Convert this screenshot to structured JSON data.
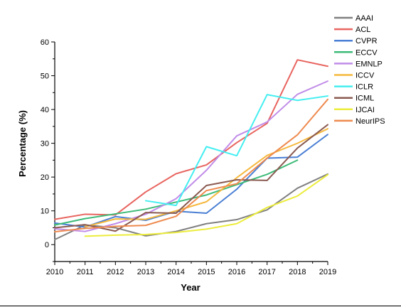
{
  "chart_data": {
    "type": "line",
    "title": "",
    "xlabel": "Year",
    "ylabel": "Percentage (%)",
    "x": [
      2010,
      2011,
      2012,
      2013,
      2014,
      2015,
      2016,
      2017,
      2018,
      2019
    ],
    "xlim": [
      2010,
      2019
    ],
    "ylim": [
      -5,
      60
    ],
    "yticks": [
      0,
      10,
      20,
      30,
      40,
      50,
      60
    ],
    "grid": false,
    "legend_position": "top-right",
    "series": [
      {
        "name": "AAAI",
        "color": "#808080",
        "values": [
          1.5,
          5.8,
          5.0,
          2.6,
          3.9,
          6.2,
          7.4,
          10.3,
          16.7,
          20.9
        ]
      },
      {
        "name": "ACL",
        "color": "#e8645f",
        "values": [
          7.5,
          9.0,
          8.8,
          15.6,
          21.0,
          23.6,
          30.2,
          35.9,
          54.7,
          52.8
        ]
      },
      {
        "name": "CVPR",
        "color": "#4a7fd4",
        "values": [
          6.4,
          5.2,
          8.3,
          7.2,
          9.9,
          9.3,
          16.4,
          25.6,
          25.9,
          32.6
        ]
      },
      {
        "name": "ECCV",
        "color": "#3dbb78",
        "values": [
          5.8,
          7.7,
          null,
          10.5,
          null,
          14.7,
          null,
          20.8,
          25.0,
          null
        ]
      },
      {
        "name": "EMNLP",
        "color": "#c08ce8",
        "values": [
          4.7,
          3.9,
          6.2,
          9.0,
          13.6,
          22.0,
          32.2,
          36.3,
          44.5,
          48.4
        ]
      },
      {
        "name": "ICCV",
        "color": "#f5b83d",
        "values": [
          null,
          5.3,
          7.6,
          7.5,
          10.0,
          12.7,
          19.8,
          26.4,
          30.0,
          34.3
        ]
      },
      {
        "name": "ICLR",
        "color": "#44eef0",
        "values": [
          null,
          null,
          null,
          13.0,
          11.6,
          29.0,
          26.3,
          44.4,
          42.7,
          44.0
        ]
      },
      {
        "name": "ICML",
        "color": "#8a5a50",
        "values": [
          5.0,
          5.9,
          4.0,
          9.5,
          9.3,
          17.5,
          19.2,
          19.0,
          28.6,
          35.5
        ]
      },
      {
        "name": "IJCAI",
        "color": "#ecec3c",
        "values": [
          null,
          2.5,
          2.8,
          3.0,
          3.6,
          4.6,
          6.2,
          11.0,
          14.4,
          20.7
        ]
      },
      {
        "name": "NeurIPS",
        "color": "#ee8a4e",
        "values": [
          3.8,
          4.8,
          5.4,
          5.7,
          8.4,
          16.0,
          18.0,
          25.6,
          32.5,
          43.0
        ]
      }
    ]
  }
}
